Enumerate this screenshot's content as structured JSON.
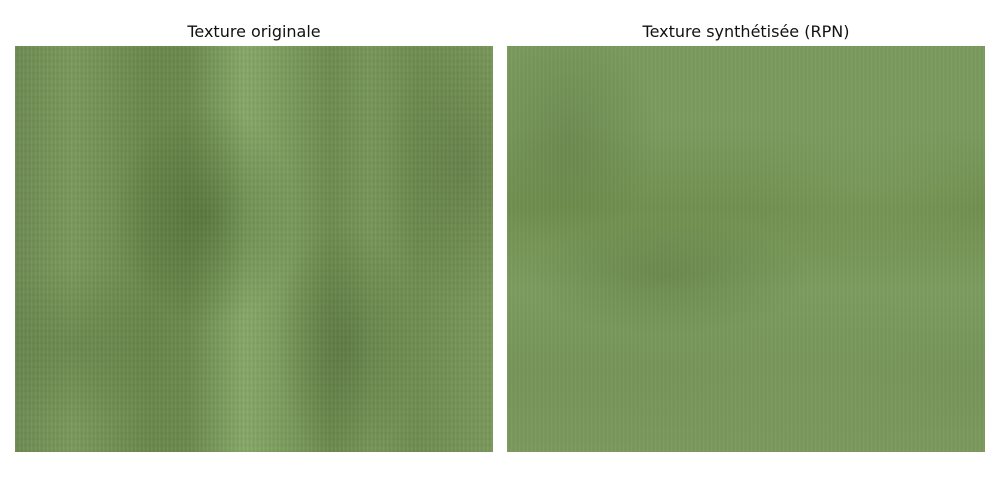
{
  "panels": [
    {
      "title": "Texture originale",
      "image": "green-fabric-texture-original"
    },
    {
      "title": "Texture synthétisée (RPN)",
      "image": "green-fabric-texture-synthesized"
    }
  ],
  "colors": {
    "background": "#ffffff",
    "texture_base": "#6d8a4f",
    "title_text": "#111111"
  }
}
